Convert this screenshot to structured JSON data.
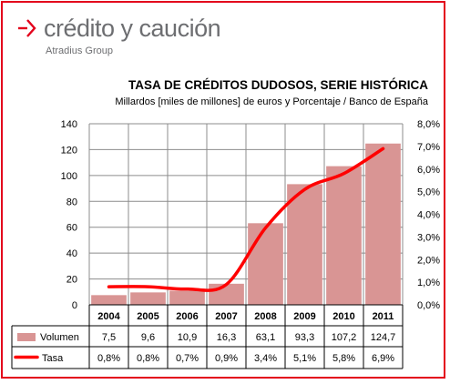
{
  "brand": {
    "name": "crédito y caución",
    "group": "Atradius Group",
    "accent_color": "#e3001b",
    "text_color": "#6d6e71"
  },
  "chart_data": {
    "type": "bar+line",
    "title": "TASA DE CRÉDITOS DUDOSOS, SERIE HISTÓRICA",
    "subtitle": "Millardos [miles de millones] de euros y Porcentaje / Banco de España",
    "categories": [
      "2004",
      "2005",
      "2006",
      "2007",
      "2008",
      "2009",
      "2010",
      "2011"
    ],
    "series": [
      {
        "name": "Volumen",
        "type": "bar",
        "axis": "left",
        "color": "#d99594",
        "values": [
          7.5,
          9.6,
          10.9,
          16.3,
          63.1,
          93.3,
          107.2,
          124.7
        ],
        "labels": [
          "7,5",
          "9,6",
          "10,9",
          "16,3",
          "63,1",
          "93,3",
          "107,2",
          "124,7"
        ]
      },
      {
        "name": "Tasa",
        "type": "line",
        "axis": "right",
        "color": "#ff0000",
        "values": [
          0.8,
          0.8,
          0.7,
          0.9,
          3.4,
          5.1,
          5.8,
          6.9
        ],
        "labels": [
          "0,8%",
          "0,8%",
          "0,7%",
          "0,9%",
          "3,4%",
          "5,1%",
          "5,8%",
          "6,9%"
        ]
      }
    ],
    "y_left": {
      "range": [
        0,
        140
      ],
      "ticks": [
        0,
        20,
        40,
        60,
        80,
        100,
        120,
        140
      ],
      "tick_labels": [
        "0",
        "20",
        "40",
        "60",
        "80",
        "100",
        "120",
        "140"
      ]
    },
    "y_right": {
      "range": [
        0,
        8
      ],
      "ticks": [
        0,
        1,
        2,
        3,
        4,
        5,
        6,
        7,
        8
      ],
      "tick_labels": [
        "0,0%",
        "1,0%",
        "2,0%",
        "3,0%",
        "4,0%",
        "5,0%",
        "6,0%",
        "7,0%",
        "8,0%"
      ]
    },
    "grid": true,
    "legend": "data-table-below"
  }
}
